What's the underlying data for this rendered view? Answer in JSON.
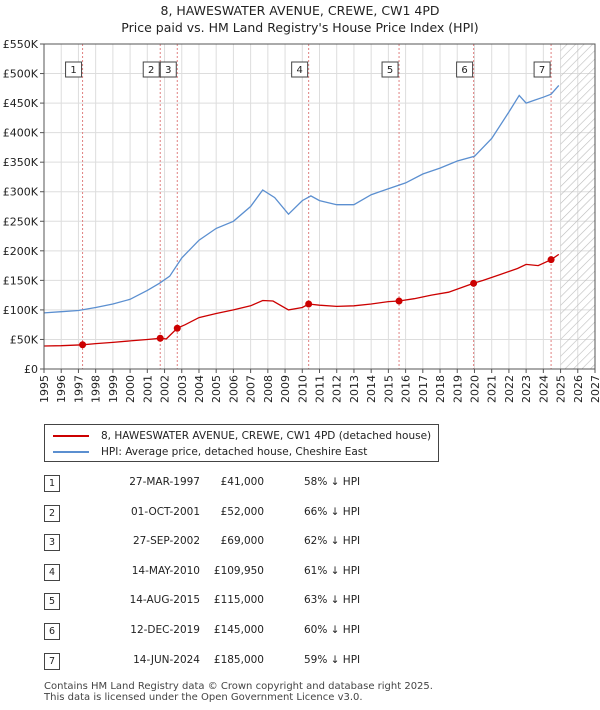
{
  "title": {
    "line1": "8, HAWESWATER AVENUE, CREWE, CW1 4PD",
    "line2": "Price paid vs. HM Land Registry's House Price Index (HPI)"
  },
  "colors": {
    "property": "#cc0000",
    "hpi": "#5b8fd0",
    "marker_line": "#e08080",
    "grid": "#dddddd"
  },
  "legend": {
    "property_label": "8, HAWESWATER AVENUE, CREWE, CW1 4PD (detached house)",
    "hpi_label": "HPI: Average price, detached house, Cheshire East"
  },
  "sales": [
    {
      "num": "1",
      "date": "27-MAR-1997",
      "price": "£41,000",
      "hpi": "58% ↓ HPI"
    },
    {
      "num": "2",
      "date": "01-OCT-2001",
      "price": "£52,000",
      "hpi": "66% ↓ HPI"
    },
    {
      "num": "3",
      "date": "27-SEP-2002",
      "price": "£69,000",
      "hpi": "62% ↓ HPI"
    },
    {
      "num": "4",
      "date": "14-MAY-2010",
      "price": "£109,950",
      "hpi": "61% ↓ HPI"
    },
    {
      "num": "5",
      "date": "14-AUG-2015",
      "price": "£115,000",
      "hpi": "63% ↓ HPI"
    },
    {
      "num": "6",
      "date": "12-DEC-2019",
      "price": "£145,000",
      "hpi": "60% ↓ HPI"
    },
    {
      "num": "7",
      "date": "14-JUN-2024",
      "price": "£185,000",
      "hpi": "59% ↓ HPI"
    }
  ],
  "footer": {
    "line1": "Contains HM Land Registry data © Crown copyright and database right 2025.",
    "line2": "This data is licensed under the Open Government Licence v3.0."
  },
  "chart_data": {
    "type": "line",
    "title": "Price paid vs. HM Land Registry's House Price Index (HPI)",
    "xlim": [
      1995,
      2027
    ],
    "ylim": [
      0,
      550000
    ],
    "x_ticks": [
      1995,
      1996,
      1997,
      1998,
      1999,
      2000,
      2001,
      2002,
      2003,
      2004,
      2005,
      2006,
      2007,
      2008,
      2009,
      2010,
      2011,
      2012,
      2013,
      2014,
      2015,
      2016,
      2017,
      2018,
      2019,
      2020,
      2021,
      2022,
      2023,
      2024,
      2025,
      2026,
      2027
    ],
    "y_ticks": [
      0,
      50000,
      100000,
      150000,
      200000,
      250000,
      300000,
      350000,
      400000,
      450000,
      500000,
      550000
    ],
    "y_tick_labels": [
      "£0",
      "£50K",
      "£100K",
      "£150K",
      "£200K",
      "£250K",
      "£300K",
      "£350K",
      "£400K",
      "£450K",
      "£500K",
      "£550K"
    ],
    "forecast_start": 2025.0,
    "series": [
      {
        "name": "8, HAWESWATER AVENUE, CREWE, CW1 4PD (detached house)",
        "points": [
          [
            1995.0,
            39000
          ],
          [
            1996.0,
            39500
          ],
          [
            1997.24,
            41000
          ],
          [
            1998.0,
            43000
          ],
          [
            1999.0,
            45000
          ],
          [
            2000.0,
            47500
          ],
          [
            2001.0,
            50000
          ],
          [
            2001.75,
            52000
          ],
          [
            2002.1,
            51000
          ],
          [
            2002.74,
            69000
          ],
          [
            2003.2,
            75000
          ],
          [
            2004.0,
            87000
          ],
          [
            2005.0,
            94000
          ],
          [
            2006.0,
            100000
          ],
          [
            2007.0,
            107000
          ],
          [
            2007.7,
            116000
          ],
          [
            2008.3,
            115000
          ],
          [
            2009.2,
            100000
          ],
          [
            2010.0,
            104000
          ],
          [
            2010.37,
            109950
          ],
          [
            2011.0,
            108000
          ],
          [
            2012.0,
            106000
          ],
          [
            2013.0,
            107000
          ],
          [
            2014.0,
            110000
          ],
          [
            2015.0,
            114000
          ],
          [
            2015.62,
            115000
          ],
          [
            2016.5,
            119000
          ],
          [
            2017.5,
            125000
          ],
          [
            2018.5,
            130000
          ],
          [
            2019.95,
            145000
          ],
          [
            2020.5,
            150000
          ],
          [
            2021.5,
            160000
          ],
          [
            2022.5,
            170000
          ],
          [
            2023.0,
            177000
          ],
          [
            2023.7,
            175000
          ],
          [
            2024.45,
            185000
          ],
          [
            2024.9,
            194000
          ]
        ]
      },
      {
        "name": "HPI: Average price, detached house, Cheshire East",
        "points": [
          [
            1995.0,
            95000
          ],
          [
            1996.0,
            97000
          ],
          [
            1997.0,
            99000
          ],
          [
            1998.0,
            104000
          ],
          [
            1999.0,
            110000
          ],
          [
            2000.0,
            118000
          ],
          [
            2001.0,
            133000
          ],
          [
            2001.7,
            145000
          ],
          [
            2002.3,
            157000
          ],
          [
            2003.0,
            188000
          ],
          [
            2004.0,
            218000
          ],
          [
            2005.0,
            238000
          ],
          [
            2006.0,
            250000
          ],
          [
            2007.0,
            275000
          ],
          [
            2007.7,
            303000
          ],
          [
            2008.4,
            290000
          ],
          [
            2009.2,
            262000
          ],
          [
            2010.0,
            285000
          ],
          [
            2010.5,
            293000
          ],
          [
            2011.0,
            285000
          ],
          [
            2012.0,
            278000
          ],
          [
            2013.0,
            278000
          ],
          [
            2014.0,
            295000
          ],
          [
            2015.0,
            305000
          ],
          [
            2016.0,
            315000
          ],
          [
            2017.0,
            330000
          ],
          [
            2018.0,
            340000
          ],
          [
            2019.0,
            352000
          ],
          [
            2020.0,
            360000
          ],
          [
            2021.0,
            390000
          ],
          [
            2022.0,
            435000
          ],
          [
            2022.6,
            463000
          ],
          [
            2023.0,
            450000
          ],
          [
            2023.5,
            455000
          ],
          [
            2024.0,
            460000
          ],
          [
            2024.45,
            465000
          ],
          [
            2024.9,
            480000
          ]
        ]
      }
    ],
    "sales": [
      {
        "label": "1",
        "year": 1997.24,
        "price": 41000
      },
      {
        "label": "2",
        "year": 2001.75,
        "price": 52000
      },
      {
        "label": "3",
        "year": 2002.74,
        "price": 69000
      },
      {
        "label": "4",
        "year": 2010.37,
        "price": 109950
      },
      {
        "label": "5",
        "year": 2015.62,
        "price": 115000
      },
      {
        "label": "6",
        "year": 2019.95,
        "price": 145000
      },
      {
        "label": "7",
        "year": 2024.45,
        "price": 185000
      }
    ]
  }
}
